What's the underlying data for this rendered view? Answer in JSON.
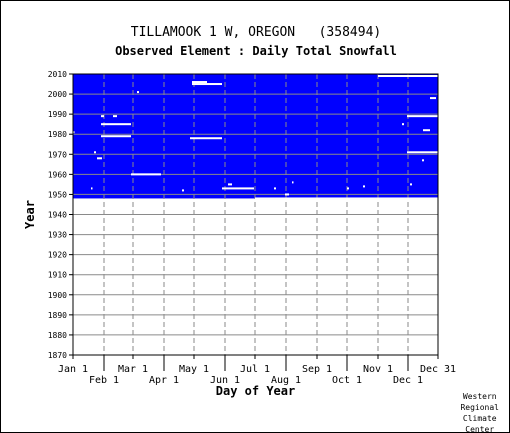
{
  "chart_data": {
    "type": "heatmap",
    "title": "TILLAMOOK 1 W, OREGON   (358494)",
    "subtitle": "Observed Element : Daily Total Snowfall",
    "xlabel": "Day of Year",
    "ylabel": "Year",
    "xlim": [
      1,
      366
    ],
    "ylim": [
      1870,
      2010
    ],
    "x_ticks": [
      {
        "day": 1,
        "label": "Jan 1",
        "row": 1
      },
      {
        "day": 32,
        "label": "Feb 1",
        "row": 2
      },
      {
        "day": 61,
        "label": "Mar 1",
        "row": 1
      },
      {
        "day": 92,
        "label": "Apr 1",
        "row": 2
      },
      {
        "day": 122,
        "label": "May 1",
        "row": 1
      },
      {
        "day": 153,
        "label": "Jun 1",
        "row": 2
      },
      {
        "day": 183,
        "label": "Jul 1",
        "row": 1
      },
      {
        "day": 214,
        "label": "Aug 1",
        "row": 2
      },
      {
        "day": 245,
        "label": "Sep 1",
        "row": 1
      },
      {
        "day": 275,
        "label": "Oct 1",
        "row": 2
      },
      {
        "day": 306,
        "label": "Nov 1",
        "row": 1
      },
      {
        "day": 336,
        "label": "Dec 1",
        "row": 2
      },
      {
        "day": 366,
        "label": "Dec 31",
        "row": 1
      }
    ],
    "y_ticks": [
      1870,
      1880,
      1890,
      1900,
      1910,
      1920,
      1930,
      1940,
      1950,
      1960,
      1970,
      1980,
      1990,
      2000,
      2010
    ],
    "grid": true,
    "data_color": "#0000ff",
    "missing_color": "#ffffff",
    "data_coverage": {
      "start_year": 1948,
      "end_year": 2010,
      "start_day": 1,
      "end_day": 366
    },
    "missing_segments": [
      {
        "year": 2009,
        "start_day": 306,
        "end_day": 366
      },
      {
        "year": 2006,
        "start_day": 120,
        "end_day": 135
      },
      {
        "year": 2005,
        "start_day": 120,
        "end_day": 150
      },
      {
        "year": 2001,
        "start_day": 65,
        "end_day": 67
      },
      {
        "year": 1998,
        "start_day": 358,
        "end_day": 364
      },
      {
        "year": 1989,
        "start_day": 29,
        "end_day": 32
      },
      {
        "year": 1989,
        "start_day": 41,
        "end_day": 45
      },
      {
        "year": 1989,
        "start_day": 335,
        "end_day": 366
      },
      {
        "year": 1985,
        "start_day": 29,
        "end_day": 59
      },
      {
        "year": 1985,
        "start_day": 330,
        "end_day": 332
      },
      {
        "year": 1982,
        "start_day": 351,
        "end_day": 358
      },
      {
        "year": 1981,
        "start_day": 1,
        "end_day": 2
      },
      {
        "year": 1979,
        "start_day": 29,
        "end_day": 59
      },
      {
        "year": 1978,
        "start_day": 118,
        "end_day": 150
      },
      {
        "year": 1971,
        "start_day": 22,
        "end_day": 24
      },
      {
        "year": 1971,
        "start_day": 335,
        "end_day": 366
      },
      {
        "year": 1968,
        "start_day": 25,
        "end_day": 30
      },
      {
        "year": 1967,
        "start_day": 350,
        "end_day": 352
      },
      {
        "year": 1960,
        "start_day": 59,
        "end_day": 89
      },
      {
        "year": 1956,
        "start_day": 220,
        "end_day": 221
      },
      {
        "year": 1955,
        "start_day": 156,
        "end_day": 160
      },
      {
        "year": 1955,
        "start_day": 338,
        "end_day": 340
      },
      {
        "year": 1954,
        "start_day": 291,
        "end_day": 293
      },
      {
        "year": 1953,
        "start_day": 19,
        "end_day": 20
      },
      {
        "year": 1953,
        "start_day": 150,
        "end_day": 182
      },
      {
        "year": 1953,
        "start_day": 202,
        "end_day": 204
      },
      {
        "year": 1953,
        "start_day": 275,
        "end_day": 277
      },
      {
        "year": 1952,
        "start_day": 110,
        "end_day": 112
      },
      {
        "year": 1950,
        "start_day": 213,
        "end_day": 217
      },
      {
        "year": 1948,
        "start_day": 183,
        "end_day": 366
      }
    ]
  },
  "credit": "Western\nRegional\nClimate\nCenter"
}
